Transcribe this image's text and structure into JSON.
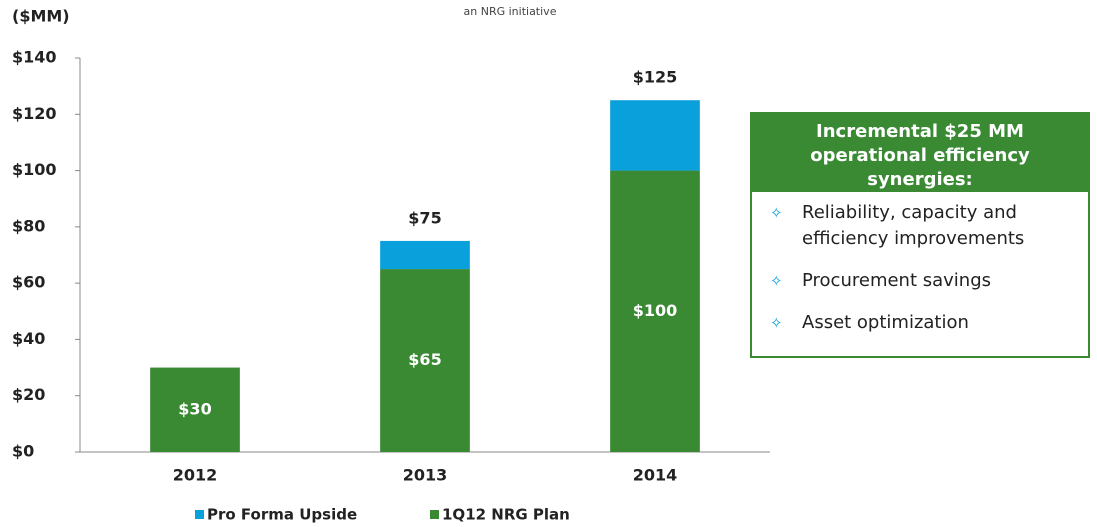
{
  "chart_data": {
    "type": "stacked_bar",
    "title": "an NRG initiative",
    "y_label": "($MM)",
    "categories": [
      "2012",
      "2013",
      "2014"
    ],
    "series": [
      {
        "name": "Pro Forma Upside",
        "color": "#0aa0dc",
        "values": [
          null,
          10,
          25
        ]
      },
      {
        "name": "1Q12 NRG Plan",
        "color": "#3a8a34",
        "values": [
          30,
          65,
          100
        ],
        "value_labels": [
          "$30",
          "$65",
          "$100"
        ]
      }
    ],
    "totals": [
      null,
      75,
      125
    ],
    "total_labels": [
      null,
      "$75",
      "$125"
    ],
    "ylim": [
      0,
      140
    ],
    "yticks": [
      {
        "value": 0,
        "label": "$0"
      },
      {
        "value": 20,
        "label": "$20"
      },
      {
        "value": 40,
        "label": "$40"
      },
      {
        "value": 60,
        "label": "$60"
      },
      {
        "value": 80,
        "label": "$80"
      },
      {
        "value": 100,
        "label": "$100"
      },
      {
        "value": 120,
        "label": "$120"
      },
      {
        "value": 140,
        "label": "$140"
      }
    ],
    "grid": false,
    "legend": "bottom",
    "annotation": {
      "title": "Incremental $25 MM operational efficiency synergies:",
      "bullets": [
        "Reliability, capacity and efficiency improvements",
        "Procurement savings",
        "Asset optimization"
      ]
    }
  }
}
